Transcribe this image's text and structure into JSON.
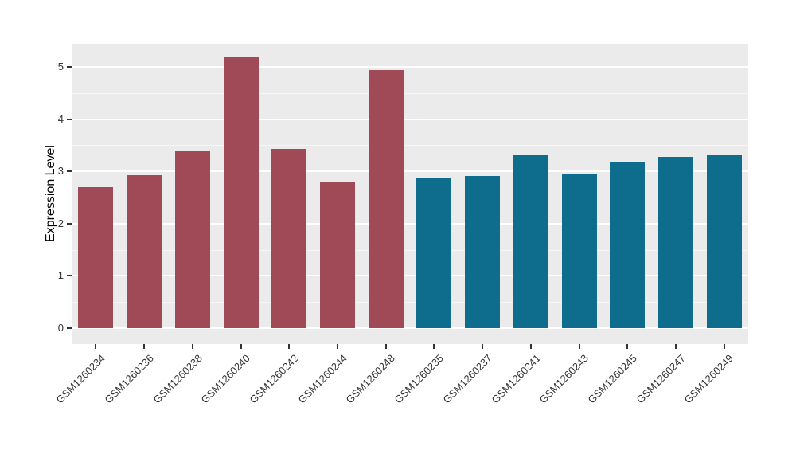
{
  "chart_data": {
    "type": "bar",
    "title": "",
    "xlabel": "",
    "ylabel": "Expression Level",
    "ylim": [
      0,
      5.44
    ],
    "yticks": [
      "0",
      "1",
      "2",
      "3",
      "4",
      "5"
    ],
    "grid": "on",
    "legend": "none",
    "panel_background": "#EBEBEB",
    "gridline_color": "#FFFFFF",
    "categories": [
      "GSM1260234",
      "GSM1260236",
      "GSM1260238",
      "GSM1260240",
      "GSM1260242",
      "GSM1260244",
      "GSM1260248",
      "GSM1260235",
      "GSM1260237",
      "GSM1260241",
      "GSM1260243",
      "GSM1260245",
      "GSM1260247",
      "GSM1260249"
    ],
    "values": [
      2.7,
      2.93,
      3.4,
      5.18,
      3.43,
      2.8,
      4.94,
      2.88,
      2.91,
      3.31,
      2.96,
      3.18,
      3.28,
      3.31
    ],
    "groups": [
      "red",
      "red",
      "red",
      "red",
      "red",
      "red",
      "red",
      "blue",
      "blue",
      "blue",
      "blue",
      "blue",
      "blue",
      "blue"
    ],
    "colors": {
      "red": "#A04A58",
      "blue": "#0E6D8C"
    }
  }
}
